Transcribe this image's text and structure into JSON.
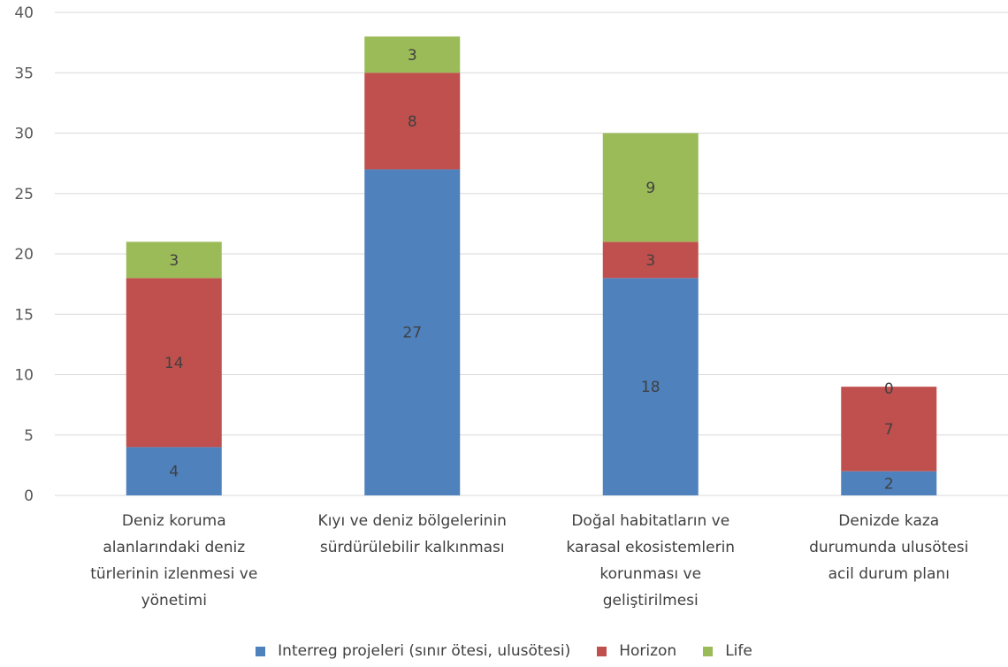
{
  "chart_data": {
    "type": "bar",
    "stacked": true,
    "categories": [
      "Deniz koruma alanlarındaki deniz türlerinin izlenmesi ve yönetimi",
      "Kıyı ve deniz bölgelerinin sürdürülebilir kalkınması",
      "Doğal habitatların ve karasal ekosistemlerin korunması ve geliştirilmesi",
      "Denizde kaza durumunda ulusötesi acil durum planı"
    ],
    "category_label_lines": [
      [
        "Deniz koruma",
        "alanlarındaki deniz",
        "türlerinin izlenmesi ve",
        "yönetimi"
      ],
      [
        "Kıyı ve deniz bölgelerinin",
        "sürdürülebilir kalkınması"
      ],
      [
        "Doğal habitatların ve",
        "karasal ekosistemlerin",
        "korunması ve",
        "geliştirilmesi"
      ],
      [
        "Denizde kaza",
        "durumunda ulusötesi",
        "acil durum planı"
      ]
    ],
    "series": [
      {
        "name": "Interreg projeleri (sınır ötesi, ulusötesi)",
        "color": "#4f81bd",
        "values": [
          4,
          27,
          18,
          2
        ]
      },
      {
        "name": "Horizon",
        "color": "#c0504d",
        "values": [
          14,
          8,
          3,
          7
        ]
      },
      {
        "name": "Life",
        "color": "#9bbb59",
        "values": [
          3,
          3,
          9,
          0
        ]
      }
    ],
    "ylim": [
      0,
      40
    ],
    "yticks": [
      "0",
      "5",
      "10",
      "15",
      "20",
      "25",
      "30",
      "35",
      "40"
    ],
    "grid": true,
    "data_labels": true,
    "legend_position": "bottom",
    "xlabel": "",
    "ylabel": ""
  }
}
